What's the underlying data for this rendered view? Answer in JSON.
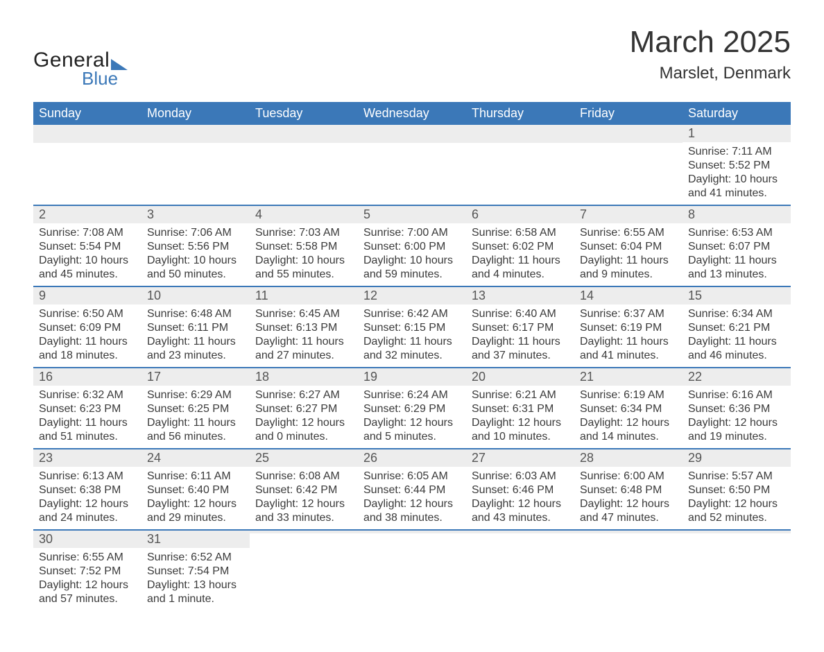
{
  "logo": {
    "line1": "General",
    "line2": "Blue"
  },
  "title": "March 2025",
  "subtitle": "Marslet, Denmark",
  "colors": {
    "accent": "#3b78b8",
    "row_grey": "#ededed",
    "page_bg": "#ffffff",
    "header_text": "#ffffff",
    "body_text": "#333333"
  },
  "typography": {
    "title_fontsize": 44,
    "subtitle_fontsize": 24,
    "header_fontsize": 18,
    "cell_fontsize": 16,
    "font_family": "Arial"
  },
  "calendar": {
    "type": "table",
    "columns": [
      "Sunday",
      "Monday",
      "Tuesday",
      "Wednesday",
      "Thursday",
      "Friday",
      "Saturday"
    ],
    "weeks": [
      [
        null,
        null,
        null,
        null,
        null,
        null,
        {
          "d": "1",
          "sr": "Sunrise: 7:11 AM",
          "ss": "Sunset: 5:52 PM",
          "dl": "Daylight: 10 hours and 41 minutes."
        }
      ],
      [
        {
          "d": "2",
          "sr": "Sunrise: 7:08 AM",
          "ss": "Sunset: 5:54 PM",
          "dl": "Daylight: 10 hours and 45 minutes."
        },
        {
          "d": "3",
          "sr": "Sunrise: 7:06 AM",
          "ss": "Sunset: 5:56 PM",
          "dl": "Daylight: 10 hours and 50 minutes."
        },
        {
          "d": "4",
          "sr": "Sunrise: 7:03 AM",
          "ss": "Sunset: 5:58 PM",
          "dl": "Daylight: 10 hours and 55 minutes."
        },
        {
          "d": "5",
          "sr": "Sunrise: 7:00 AM",
          "ss": "Sunset: 6:00 PM",
          "dl": "Daylight: 10 hours and 59 minutes."
        },
        {
          "d": "6",
          "sr": "Sunrise: 6:58 AM",
          "ss": "Sunset: 6:02 PM",
          "dl": "Daylight: 11 hours and 4 minutes."
        },
        {
          "d": "7",
          "sr": "Sunrise: 6:55 AM",
          "ss": "Sunset: 6:04 PM",
          "dl": "Daylight: 11 hours and 9 minutes."
        },
        {
          "d": "8",
          "sr": "Sunrise: 6:53 AM",
          "ss": "Sunset: 6:07 PM",
          "dl": "Daylight: 11 hours and 13 minutes."
        }
      ],
      [
        {
          "d": "9",
          "sr": "Sunrise: 6:50 AM",
          "ss": "Sunset: 6:09 PM",
          "dl": "Daylight: 11 hours and 18 minutes."
        },
        {
          "d": "10",
          "sr": "Sunrise: 6:48 AM",
          "ss": "Sunset: 6:11 PM",
          "dl": "Daylight: 11 hours and 23 minutes."
        },
        {
          "d": "11",
          "sr": "Sunrise: 6:45 AM",
          "ss": "Sunset: 6:13 PM",
          "dl": "Daylight: 11 hours and 27 minutes."
        },
        {
          "d": "12",
          "sr": "Sunrise: 6:42 AM",
          "ss": "Sunset: 6:15 PM",
          "dl": "Daylight: 11 hours and 32 minutes."
        },
        {
          "d": "13",
          "sr": "Sunrise: 6:40 AM",
          "ss": "Sunset: 6:17 PM",
          "dl": "Daylight: 11 hours and 37 minutes."
        },
        {
          "d": "14",
          "sr": "Sunrise: 6:37 AM",
          "ss": "Sunset: 6:19 PM",
          "dl": "Daylight: 11 hours and 41 minutes."
        },
        {
          "d": "15",
          "sr": "Sunrise: 6:34 AM",
          "ss": "Sunset: 6:21 PM",
          "dl": "Daylight: 11 hours and 46 minutes."
        }
      ],
      [
        {
          "d": "16",
          "sr": "Sunrise: 6:32 AM",
          "ss": "Sunset: 6:23 PM",
          "dl": "Daylight: 11 hours and 51 minutes."
        },
        {
          "d": "17",
          "sr": "Sunrise: 6:29 AM",
          "ss": "Sunset: 6:25 PM",
          "dl": "Daylight: 11 hours and 56 minutes."
        },
        {
          "d": "18",
          "sr": "Sunrise: 6:27 AM",
          "ss": "Sunset: 6:27 PM",
          "dl": "Daylight: 12 hours and 0 minutes."
        },
        {
          "d": "19",
          "sr": "Sunrise: 6:24 AM",
          "ss": "Sunset: 6:29 PM",
          "dl": "Daylight: 12 hours and 5 minutes."
        },
        {
          "d": "20",
          "sr": "Sunrise: 6:21 AM",
          "ss": "Sunset: 6:31 PM",
          "dl": "Daylight: 12 hours and 10 minutes."
        },
        {
          "d": "21",
          "sr": "Sunrise: 6:19 AM",
          "ss": "Sunset: 6:34 PM",
          "dl": "Daylight: 12 hours and 14 minutes."
        },
        {
          "d": "22",
          "sr": "Sunrise: 6:16 AM",
          "ss": "Sunset: 6:36 PM",
          "dl": "Daylight: 12 hours and 19 minutes."
        }
      ],
      [
        {
          "d": "23",
          "sr": "Sunrise: 6:13 AM",
          "ss": "Sunset: 6:38 PM",
          "dl": "Daylight: 12 hours and 24 minutes."
        },
        {
          "d": "24",
          "sr": "Sunrise: 6:11 AM",
          "ss": "Sunset: 6:40 PM",
          "dl": "Daylight: 12 hours and 29 minutes."
        },
        {
          "d": "25",
          "sr": "Sunrise: 6:08 AM",
          "ss": "Sunset: 6:42 PM",
          "dl": "Daylight: 12 hours and 33 minutes."
        },
        {
          "d": "26",
          "sr": "Sunrise: 6:05 AM",
          "ss": "Sunset: 6:44 PM",
          "dl": "Daylight: 12 hours and 38 minutes."
        },
        {
          "d": "27",
          "sr": "Sunrise: 6:03 AM",
          "ss": "Sunset: 6:46 PM",
          "dl": "Daylight: 12 hours and 43 minutes."
        },
        {
          "d": "28",
          "sr": "Sunrise: 6:00 AM",
          "ss": "Sunset: 6:48 PM",
          "dl": "Daylight: 12 hours and 47 minutes."
        },
        {
          "d": "29",
          "sr": "Sunrise: 5:57 AM",
          "ss": "Sunset: 6:50 PM",
          "dl": "Daylight: 12 hours and 52 minutes."
        }
      ],
      [
        {
          "d": "30",
          "sr": "Sunrise: 6:55 AM",
          "ss": "Sunset: 7:52 PM",
          "dl": "Daylight: 12 hours and 57 minutes."
        },
        {
          "d": "31",
          "sr": "Sunrise: 6:52 AM",
          "ss": "Sunset: 7:54 PM",
          "dl": "Daylight: 13 hours and 1 minute."
        },
        null,
        null,
        null,
        null,
        null
      ]
    ]
  }
}
